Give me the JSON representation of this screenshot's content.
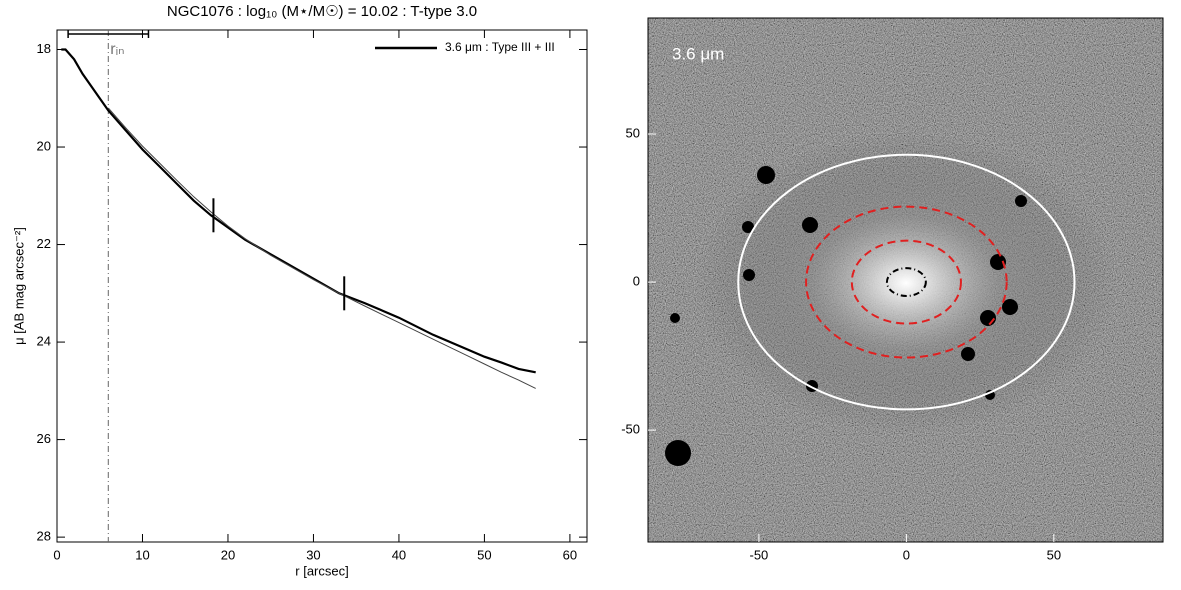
{
  "chart_data": [
    {
      "type": "line",
      "title": "NGC1076 : log₁₀ (M⋆/M☉) = 10.02 : T-type 3.0",
      "x_label": "r [arcsec]",
      "y_label": "μ [AB mag arcsec⁻²]",
      "xlim": [
        0,
        62
      ],
      "ylim": [
        28.1,
        17.6
      ],
      "xticks": [
        0,
        10,
        20,
        30,
        40,
        50,
        60
      ],
      "yticks": [
        18,
        20,
        22,
        24,
        26,
        28
      ],
      "x": [
        0.5,
        1,
        2,
        3,
        4,
        5,
        6,
        8,
        10,
        12,
        14,
        16,
        18,
        20,
        22,
        25,
        28,
        30,
        33,
        36,
        40,
        44,
        48,
        50,
        52,
        54,
        56
      ],
      "series": [
        {
          "name": "3.6 μm : Type III + III",
          "color": "#000000",
          "values": [
            18.0,
            18.0,
            18.2,
            18.5,
            18.75,
            19.0,
            19.25,
            19.65,
            20.05,
            20.4,
            20.75,
            21.1,
            21.4,
            21.65,
            21.9,
            22.2,
            22.5,
            22.7,
            23.0,
            23.2,
            23.5,
            23.85,
            24.15,
            24.3,
            24.42,
            24.55,
            24.62
          ]
        },
        {
          "color": "#444444",
          "values": [
            null,
            null,
            null,
            null,
            null,
            null,
            19.2,
            19.6,
            19.98,
            20.33,
            20.68,
            21.02,
            21.33,
            21.62,
            21.88,
            22.22,
            22.52,
            22.72,
            23.0,
            23.26,
            23.6,
            23.94,
            24.28,
            24.45,
            24.62,
            24.78,
            24.95
          ]
        }
      ],
      "markers": [
        {
          "x": 18.3,
          "y": 21.4
        },
        {
          "x": 33.6,
          "y": 23.0
        }
      ],
      "annotation": {
        "text": "rᵢₙ",
        "x": 6,
        "bar": [
          1.3,
          10.7
        ]
      }
    },
    {
      "type": "image",
      "label": "3.6 μm",
      "xlim": [
        -87.6,
        87
      ],
      "ylim": [
        -87.8,
        89.2
      ],
      "xticks": [
        -50,
        0,
        50
      ],
      "yticks": [
        -50,
        0,
        50
      ],
      "ellipses": [
        {
          "cx": 0,
          "cy": 0,
          "rx": 57,
          "ry": 43,
          "color": "#ffffff",
          "dashed": false
        },
        {
          "cx": 0,
          "cy": 0,
          "rx": 34,
          "ry": 25.5,
          "color": "#e02020",
          "dashed": true
        },
        {
          "cx": 0,
          "cy": 0,
          "rx": 18.5,
          "ry": 14,
          "color": "#e02020",
          "dashed": true
        },
        {
          "cx": 0,
          "cy": 0,
          "rx": 6.6,
          "ry": 4.7,
          "color": "#000000",
          "dashed": true
        }
      ]
    }
  ]
}
